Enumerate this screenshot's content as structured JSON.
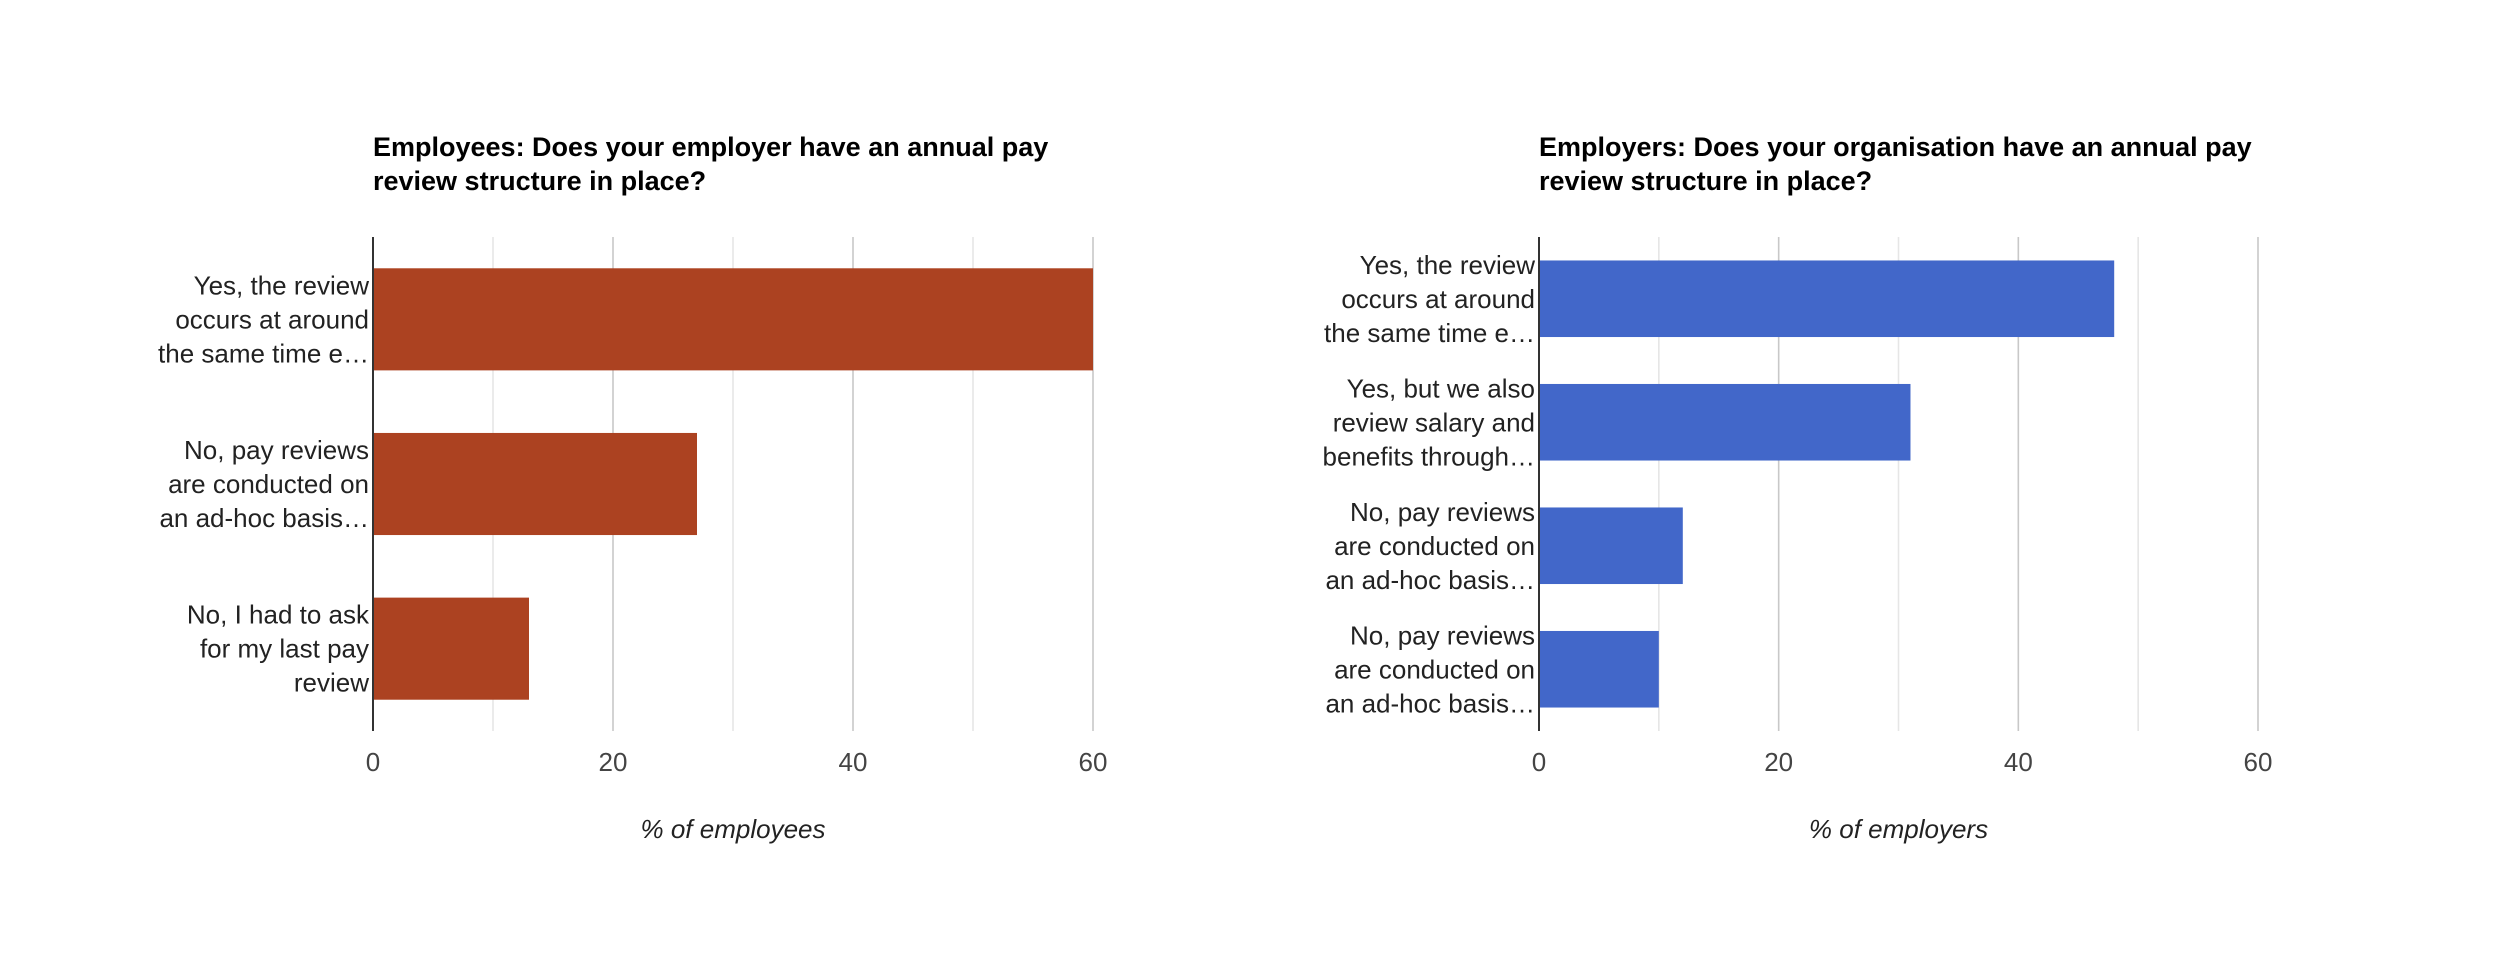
{
  "chart_data": [
    {
      "type": "bar",
      "orientation": "horizontal",
      "title": [
        "Employees: Does your employer have an annual pay",
        "review structure in place?"
      ],
      "categories": [
        [
          "Yes, the review",
          "occurs at around",
          "the same time e…"
        ],
        [
          "No, pay reviews",
          "are conducted on",
          "an ad-hoc basis…"
        ],
        [
          "No, I had to ask",
          "for my last pay",
          "review"
        ]
      ],
      "values": [
        60,
        27,
        13
      ],
      "color": "#ac4221",
      "xlim": [
        0,
        60
      ],
      "xticks": [
        0,
        20,
        40,
        60
      ],
      "grid": true,
      "xlabel": "% of employees"
    },
    {
      "type": "bar",
      "orientation": "horizontal",
      "title": [
        "Employers: Does your organisation have an annual pay",
        "review structure in place?"
      ],
      "categories": [
        [
          "Yes, the review",
          "occurs at around",
          "the same time e…"
        ],
        [
          "Yes, but we also",
          "review salary and",
          "benefits through…"
        ],
        [
          "No, pay reviews",
          "are conducted on",
          "an ad-hoc basis…"
        ],
        [
          "No, pay reviews",
          "are conducted on",
          "an ad-hoc basis…"
        ]
      ],
      "values": [
        48,
        31,
        12,
        10
      ],
      "color": "#4267c9",
      "xlim": [
        0,
        60
      ],
      "xticks": [
        0,
        20,
        40,
        60
      ],
      "grid": true,
      "xlabel": "% of employers"
    }
  ]
}
